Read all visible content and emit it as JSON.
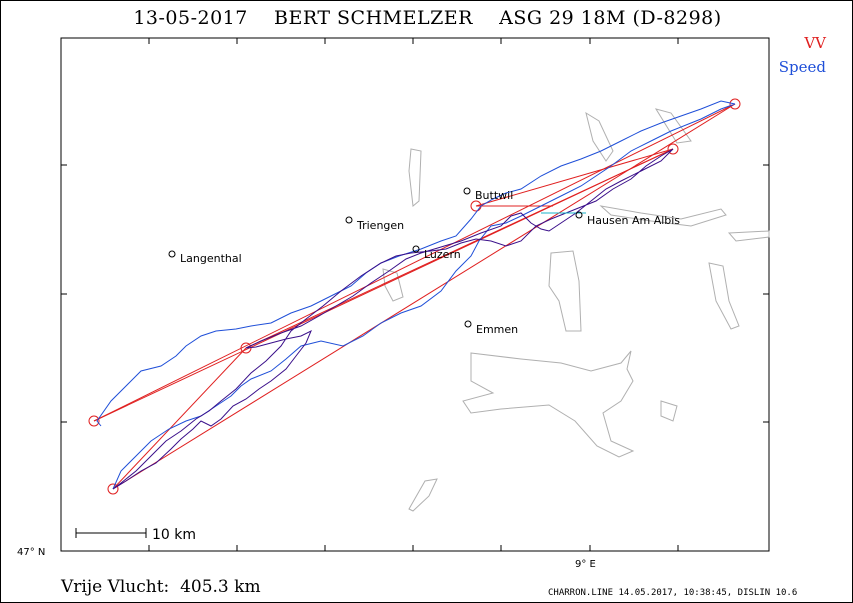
{
  "header": {
    "title": "13-05-2017    BERT SCHMELZER    ASG 29 18M (D-8298)"
  },
  "legend": [
    {
      "label": "VV",
      "color": "#e02020"
    },
    {
      "label": "Speed",
      "color": "#1f4fd8"
    }
  ],
  "map": {
    "places": [
      {
        "name": "Buttwil"
      },
      {
        "name": "Triengen"
      },
      {
        "name": "Hausen Am Albis"
      },
      {
        "name": "Langenthal"
      },
      {
        "name": "Luzern"
      },
      {
        "name": "Emmen"
      }
    ],
    "scale_label": "10 km",
    "lat_label": "47° N",
    "lon_label": "9° E"
  },
  "footer": {
    "distance": "Vrije Vlucht:  405.3 km",
    "credits": "CHARRON.LINE 14.05.2017, 10:38:45, DISLIN 10.6"
  },
  "colors": {
    "task": "#e02020",
    "track_blue": "#1f4fd8",
    "track_purple": "#3a0f8a",
    "cyan_segment": "#19b3c9",
    "lakes": "#b0b0b0"
  }
}
